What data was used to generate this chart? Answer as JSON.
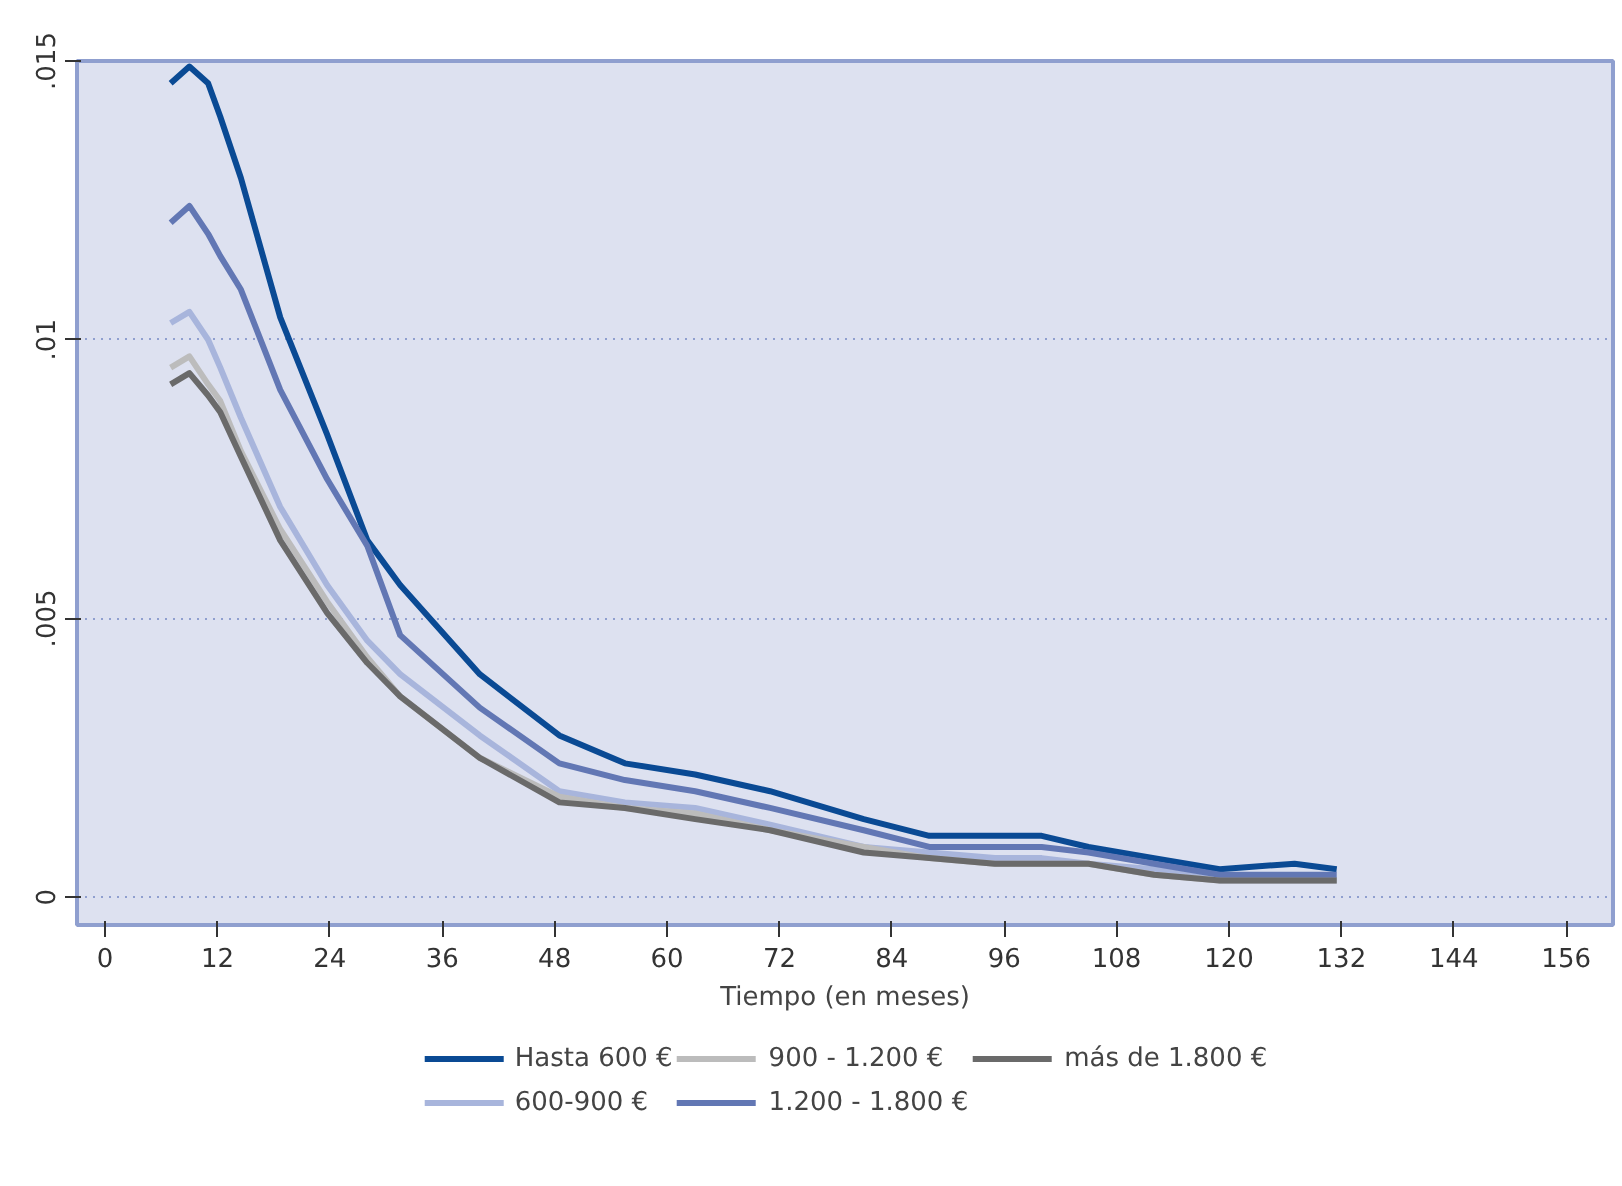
{
  "chart_data": {
    "type": "line",
    "xlabel": "Tiempo (en meses)",
    "x": [
      7,
      9,
      11,
      12.3,
      14.5,
      18.7,
      23.7,
      28,
      31.5,
      40,
      48.5,
      55.5,
      63,
      71,
      81,
      88,
      95,
      100,
      105,
      112,
      119,
      127,
      131.5
    ],
    "series": [
      {
        "name": "Hasta 600 €",
        "color": "#0a4a94",
        "values": [
          0.0146,
          0.0149,
          0.0146,
          0.014,
          0.0129,
          0.0104,
          0.0083,
          0.0064,
          0.0056,
          0.004,
          0.0029,
          0.0024,
          0.0022,
          0.0019,
          0.0014,
          0.0011,
          0.0011,
          0.0011,
          0.0009,
          0.0007,
          0.0005,
          0.0006,
          0.0005
        ]
      },
      {
        "name": "600-900 €",
        "color": "#a8b5dc",
        "values": [
          0.0103,
          0.0105,
          0.01,
          0.0095,
          0.0086,
          0.007,
          0.0056,
          0.0046,
          0.004,
          0.0029,
          0.0019,
          0.0017,
          0.0016,
          0.0013,
          0.0009,
          0.0008,
          0.0007,
          0.0007,
          0.0006,
          0.0005,
          0.0003,
          0.0003,
          0.0003
        ]
      },
      {
        "name": "900 - 1.200 €",
        "color": "#bcbcbc",
        "values": [
          0.0095,
          0.0097,
          0.0092,
          0.0089,
          0.008,
          0.0066,
          0.0053,
          0.0043,
          0.0036,
          0.0025,
          0.0018,
          0.0016,
          0.0015,
          0.0012,
          0.0009,
          0.0007,
          0.0006,
          0.0006,
          0.0006,
          0.0004,
          0.0003,
          0.0003,
          0.0003
        ]
      },
      {
        "name": "1.200 - 1.800 €",
        "color": "#6277b4",
        "values": [
          0.0121,
          0.0124,
          0.0119,
          0.0115,
          0.0109,
          0.0091,
          0.0075,
          0.0063,
          0.0047,
          0.0034,
          0.0024,
          0.0021,
          0.0019,
          0.0016,
          0.0012,
          0.0009,
          0.0009,
          0.0009,
          0.0008,
          0.0006,
          0.0004,
          0.0004,
          0.0004
        ]
      },
      {
        "name": "más de 1.800 €",
        "color": "#6a6a6a",
        "values": [
          0.0092,
          0.0094,
          0.009,
          0.0087,
          0.0079,
          0.0064,
          0.0051,
          0.0042,
          0.0036,
          0.0025,
          0.0017,
          0.0016,
          0.0014,
          0.0012,
          0.0008,
          0.0007,
          0.0006,
          0.0006,
          0.0006,
          0.0004,
          0.0003,
          0.0003,
          0.0003
        ]
      }
    ],
    "xlim": [
      -3,
      161
    ],
    "xticks": [
      0,
      12,
      24,
      36,
      48,
      60,
      72,
      84,
      96,
      108,
      120,
      132,
      144,
      156
    ],
    "ylim": [
      -0.0005,
      0.015
    ],
    "yticks": [
      {
        "value": 0,
        "label": "0"
      },
      {
        "value": 0.005,
        "label": ".005"
      },
      {
        "value": 0.01,
        "label": ".01"
      },
      {
        "value": 0.015,
        "label": ".015"
      }
    ],
    "grid": "y",
    "legend": "bottom",
    "line_style": "solid",
    "marker": "none"
  }
}
